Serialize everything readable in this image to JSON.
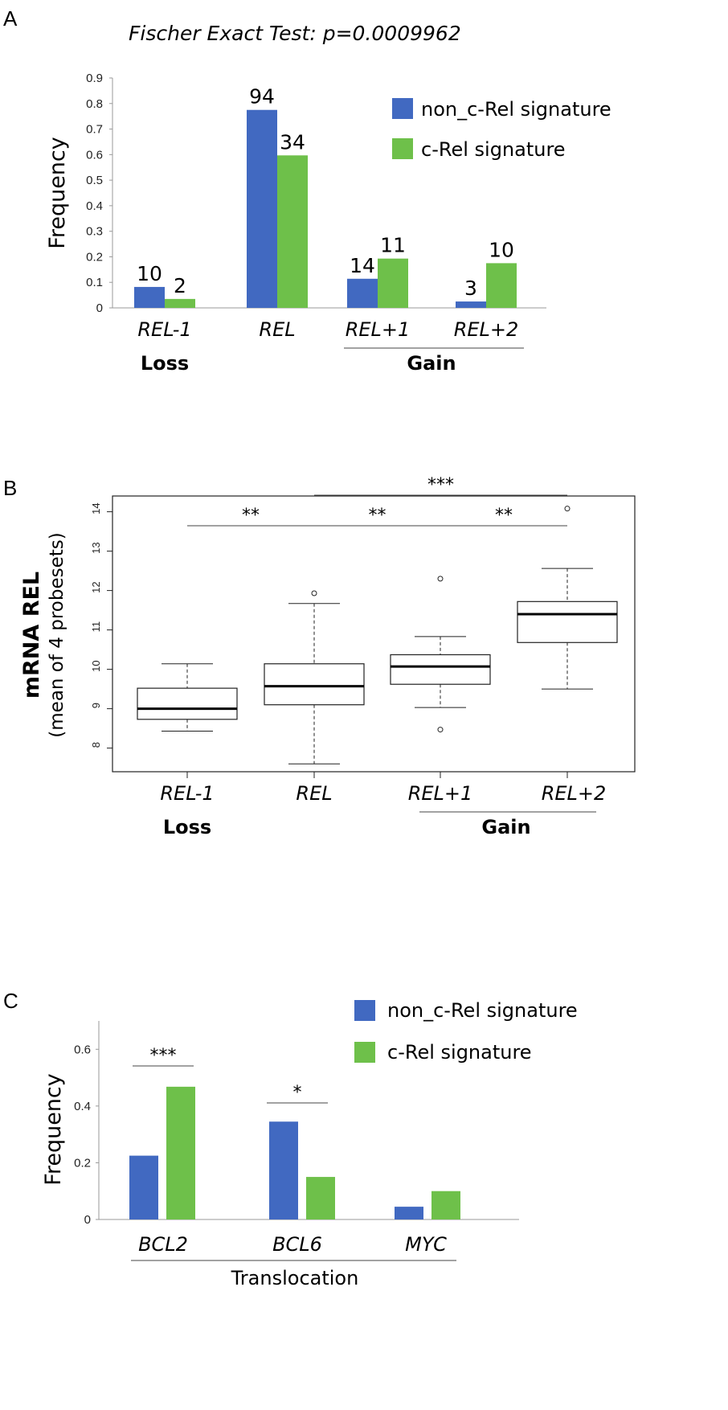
{
  "colors": {
    "blue": "#4169c1",
    "green": "#6ec04a",
    "axis": "#999999",
    "box": "#222222"
  },
  "chart_data": [
    {
      "panel": "A",
      "type": "bar",
      "title": "Fischer Exact Test: p=0.0009962",
      "ylabel": "Frequency",
      "ylim": [
        0,
        0.9
      ],
      "yticks": [
        "0",
        "0.1",
        "0.2",
        "0.3",
        "0.4",
        "0.5",
        "0.6",
        "0.7",
        "0.8",
        "0.9"
      ],
      "categories": [
        "REL-1",
        "REL",
        "REL+1",
        "REL+2"
      ],
      "groups": [
        {
          "label": "Loss"
        },
        {
          "label": "Gain"
        }
      ],
      "series": [
        {
          "name": "non_c-Rel signature",
          "values": [
            0.082,
            0.775,
            0.114,
            0.025
          ],
          "labels": [
            "10",
            "94",
            "14",
            "3"
          ]
        },
        {
          "name": "c-Rel signature",
          "values": [
            0.035,
            0.597,
            0.193,
            0.175
          ],
          "labels": [
            "2",
            "34",
            "11",
            "10"
          ]
        }
      ]
    },
    {
      "panel": "B",
      "type": "box",
      "ylabel_bold": "mRNA REL",
      "ylabel_sub": "(mean of 4 probesets)",
      "ylim": [
        7.4,
        14.4
      ],
      "yticks": [
        "8",
        "9",
        "10",
        "11",
        "12",
        "13",
        "14"
      ],
      "categories": [
        "REL-1",
        "REL",
        "REL+1",
        "REL+2"
      ],
      "groups": [
        {
          "label": "Loss"
        },
        {
          "label": "Gain"
        }
      ],
      "boxes": [
        {
          "min": 8.43,
          "q1": 8.73,
          "median": 9.0,
          "q3": 9.52,
          "max": 10.14,
          "outliers": []
        },
        {
          "min": 7.6,
          "q1": 9.1,
          "median": 9.57,
          "q3": 10.14,
          "max": 11.67,
          "outliers": [
            11.93
          ]
        },
        {
          "min": 9.03,
          "q1": 9.62,
          "median": 10.07,
          "q3": 10.37,
          "max": 10.83,
          "outliers": [
            12.3,
            8.47
          ]
        },
        {
          "min": 9.5,
          "q1": 10.68,
          "median": 11.4,
          "q3": 11.72,
          "max": 12.56,
          "outliers": [
            14.08
          ]
        }
      ],
      "significance": [
        {
          "from": 0,
          "to": 1,
          "label": "**",
          "level": 1
        },
        {
          "from": 1,
          "to": 2,
          "label": "**",
          "level": 1
        },
        {
          "from": 2,
          "to": 3,
          "label": "**",
          "level": 1
        },
        {
          "from": 1,
          "to": 3,
          "label": "***",
          "level": 2
        }
      ]
    },
    {
      "panel": "C",
      "type": "bar",
      "ylabel": "Frequency",
      "ylim": [
        0,
        0.7
      ],
      "yticks": [
        "0",
        "0.2",
        "0.4",
        "0.6"
      ],
      "categories": [
        "BCL2",
        "BCL6",
        "MYC"
      ],
      "xlabel": "Translocation",
      "series": [
        {
          "name": "non_c-Rel signature",
          "values": [
            0.225,
            0.345,
            0.045
          ]
        },
        {
          "name": "c-Rel signature",
          "values": [
            0.468,
            0.15,
            0.1
          ]
        }
      ],
      "significance": [
        {
          "category": 0,
          "label": "***"
        },
        {
          "category": 1,
          "label": "*"
        }
      ]
    }
  ],
  "panels": {
    "a": "A",
    "b": "B",
    "c": "C"
  }
}
